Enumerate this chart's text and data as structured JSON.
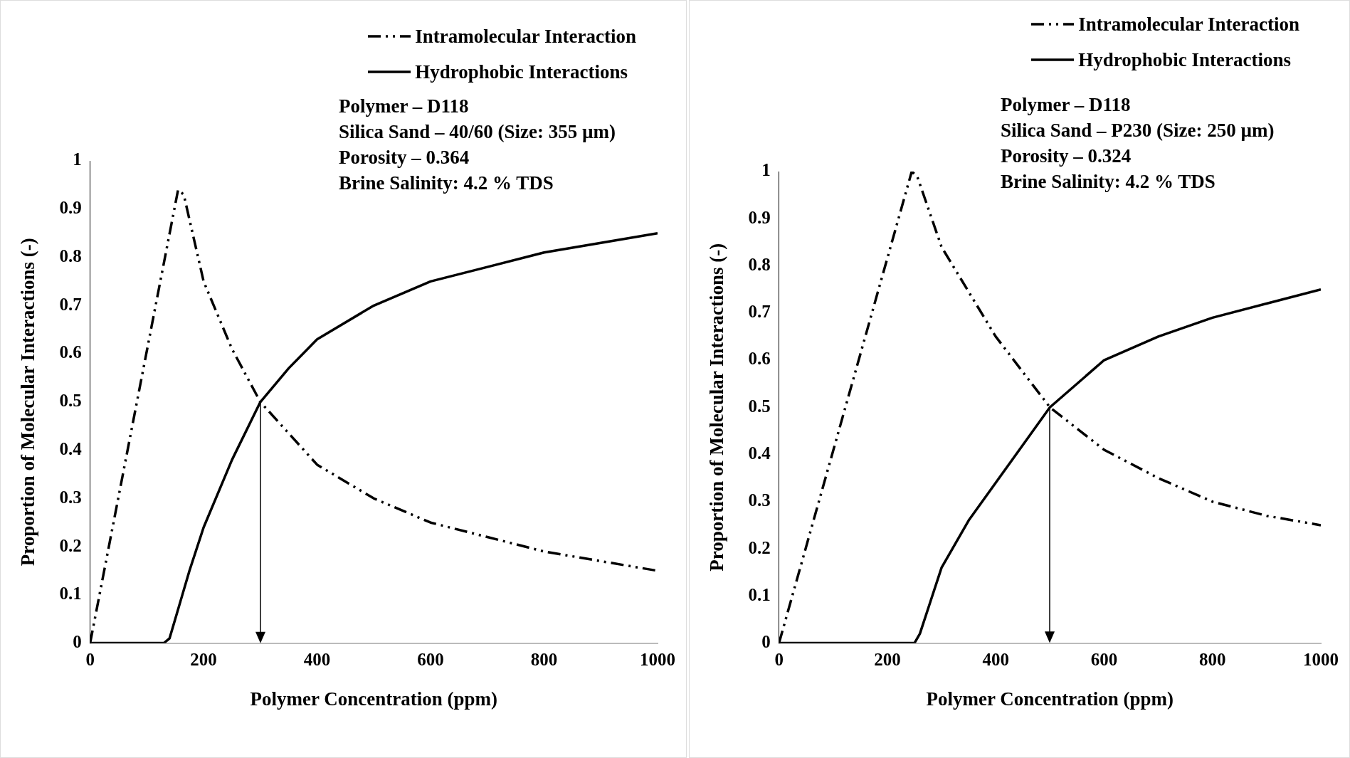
{
  "chart_data": [
    {
      "type": "line",
      "xlabel": "Polymer Concentration (ppm)",
      "ylabel": "Proportion of Molecular Interactions (-)",
      "xlim": [
        0,
        1000
      ],
      "xticks": [
        0,
        200,
        400,
        600,
        800,
        1000
      ],
      "ylim": [
        0,
        1
      ],
      "yticks": [
        0,
        0.1,
        0.2,
        0.3,
        0.4,
        0.5,
        0.6,
        0.7,
        0.8,
        0.9,
        1
      ],
      "grid": false,
      "legend": "top right",
      "annotations": [
        "Polymer – D118",
        "Silica Sand – 40/60 (Size: 355 µm)",
        "Porosity – 0.364",
        "Brine Salinity: 4.2 % TDS"
      ],
      "series": [
        {
          "name": "Intramolecular Interaction",
          "color": "#000000",
          "line_style": "dashed",
          "x": [
            0,
            155,
            165,
            200,
            250,
            300,
            400,
            500,
            600,
            700,
            800,
            900,
            1000
          ],
          "values": [
            0,
            0.94,
            0.93,
            0.75,
            0.61,
            0.5,
            0.37,
            0.3,
            0.25,
            0.22,
            0.19,
            0.17,
            0.15
          ]
        },
        {
          "name": "Hydrophobic Interactions",
          "color": "#000000",
          "line_style": "solid",
          "x": [
            0,
            130,
            140,
            150,
            175,
            200,
            250,
            300,
            350,
            400,
            500,
            600,
            700,
            800,
            900,
            1000
          ],
          "values": [
            0,
            0,
            0.01,
            0.05,
            0.15,
            0.24,
            0.38,
            0.5,
            0.57,
            0.63,
            0.7,
            0.75,
            0.78,
            0.81,
            0.83,
            0.85
          ]
        }
      ]
    },
    {
      "type": "line",
      "xlabel": "Polymer Concentration (ppm)",
      "ylabel": "Proportion of Molecular Interactions (-)",
      "xlim": [
        0,
        1000
      ],
      "xticks": [
        0,
        200,
        400,
        600,
        800,
        1000
      ],
      "ylim": [
        0,
        1
      ],
      "yticks": [
        0,
        0.1,
        0.2,
        0.3,
        0.4,
        0.5,
        0.6,
        0.7,
        0.8,
        0.9,
        1
      ],
      "grid": false,
      "legend": "top right",
      "annotations": [
        "Polymer – D118",
        "Silica Sand – P230 (Size: 250 µm)",
        "Porosity – 0.324",
        "Brine Salinity: 4.2 % TDS"
      ],
      "series": [
        {
          "name": "Intramolecular Interaction",
          "color": "#000000",
          "line_style": "dashed",
          "x": [
            0,
            245,
            255,
            300,
            400,
            500,
            600,
            700,
            800,
            900,
            1000
          ],
          "values": [
            0,
            1,
            0.99,
            0.84,
            0.65,
            0.5,
            0.41,
            0.35,
            0.3,
            0.27,
            0.25
          ]
        },
        {
          "name": "Hydrophobic Interactions",
          "color": "#000000",
          "line_style": "solid",
          "x": [
            0,
            200,
            250,
            260,
            280,
            300,
            350,
            400,
            450,
            500,
            600,
            700,
            800,
            900,
            1000
          ],
          "values": [
            0,
            0,
            0,
            0.02,
            0.09,
            0.16,
            0.26,
            0.34,
            0.42,
            0.5,
            0.6,
            0.65,
            0.69,
            0.72,
            0.75
          ]
        }
      ]
    }
  ]
}
